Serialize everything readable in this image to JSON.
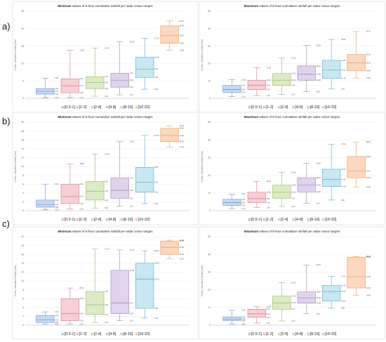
{
  "row_labels": [
    "a)",
    "b)",
    "c)"
  ],
  "titles": {
    "min": {
      "bold": "Minimum",
      "rest": " values of 6-hour cumulative rainfall per radar colour ranges"
    },
    "max": {
      "bold": "Maximum",
      "rest": " values of 6-hour cumulative rainfall per radar colour ranges"
    }
  },
  "ylabel": "6-hour cumulative rainfall (mm)",
  "legend": [
    "[0.5-1]",
    "[1-2]",
    "[2-4]",
    "[4-8]",
    "[8-16]",
    "[16-32]"
  ],
  "colors": {
    "fill": [
      "#c6d9f1",
      "#f6d0d6",
      "#dcebc6",
      "#e0d4ec",
      "#c9e7f1",
      "#fbd8bf"
    ],
    "stroke": [
      "#6c8fc8",
      "#d4788a",
      "#8fb56a",
      "#9c82b8",
      "#5ba7c6",
      "#e59a5a"
    ]
  },
  "chart_data": [
    {
      "type": "box",
      "title": "Minimum values of 6-hour cumulative rainfall per radar colour ranges",
      "row": "a)",
      "categories": [
        "[0.5-1]",
        "[1-2]",
        "[2-4]",
        "[4-8]",
        "[8-16]",
        "[16-32]"
      ],
      "ylim": [
        0,
        25
      ],
      "yticks": [
        0,
        5,
        10,
        15,
        20,
        25
      ],
      "boxes": [
        {
          "min": 0.2,
          "q1": 1.2,
          "median": 2.0,
          "q3": 2.8,
          "max": 5.8
        },
        {
          "min": 0.2,
          "q1": 1.6,
          "median": 3.6,
          "q3": 5.6,
          "max": 13.8
        },
        {
          "min": 0.6,
          "q1": 2.8,
          "median": 4.5,
          "q3": 6.2,
          "max": 14.4
        },
        {
          "min": 1.0,
          "q1": 3.2,
          "median": 5.2,
          "q3": 7.2,
          "max": 16.2
        },
        {
          "min": 2.6,
          "q1": 6.0,
          "median": 8.4,
          "q3": 11.8,
          "max": 17.2
        },
        {
          "min": 13.8,
          "q1": 15.8,
          "median": 18.0,
          "q3": 20.8,
          "max": 22.2
        }
      ]
    },
    {
      "type": "box",
      "title": "Maximum values of 6-hour cumulative rainfall per radar colour ranges",
      "row": "a)",
      "categories": [
        "[0.5-1]",
        "[1-2]",
        "[2-4]",
        "[4-8]",
        "[8-16]",
        "[16-32]"
      ],
      "ylim": [
        0,
        50
      ],
      "yticks": [
        0,
        10,
        20,
        30,
        40,
        50
      ],
      "boxes": [
        {
          "min": 1.0,
          "q1": 3.4,
          "median": 5.0,
          "q3": 7.4,
          "max": 10.6
        },
        {
          "min": 1.6,
          "q1": 5.0,
          "median": 7.4,
          "q3": 10.4,
          "max": 17.6
        },
        {
          "min": 2.2,
          "q1": 7.4,
          "median": 10.4,
          "q3": 14.2,
          "max": 23.2
        },
        {
          "min": 3.8,
          "q1": 10.4,
          "median": 13.8,
          "q3": 18.6,
          "max": 30.4
        },
        {
          "min": 5.4,
          "q1": 11.4,
          "median": 16.2,
          "q3": 21.8,
          "max": 33.8
        },
        {
          "min": 11.6,
          "q1": 15.8,
          "median": 20.4,
          "q3": 25.2,
          "max": 38.4
        }
      ]
    },
    {
      "type": "box",
      "title": "Minimum values of 6-hour cumulative rainfall per radar colour ranges",
      "row": "b)",
      "categories": [
        "[0.5-1]",
        "[1-2]",
        "[2-4]",
        "[4-8]",
        "[8-16]",
        "[16-32]"
      ],
      "ylim": [
        0,
        20
      ],
      "yticks": [
        0,
        2,
        4,
        6,
        8,
        10,
        12,
        14,
        16,
        18,
        20
      ],
      "boxes": [
        {
          "min": 0.2,
          "q1": 0.8,
          "median": 1.4,
          "q3": 2.4,
          "max": 6.0
        },
        {
          "min": 0.4,
          "q1": 1.6,
          "median": 3.2,
          "q3": 6.0,
          "max": 10.6
        },
        {
          "min": 0.6,
          "q1": 2.4,
          "median": 4.4,
          "q3": 6.6,
          "max": 12.8
        },
        {
          "min": 1.0,
          "q1": 2.8,
          "median": 4.6,
          "q3": 7.4,
          "max": 15.6
        },
        {
          "min": 1.6,
          "q1": 4.2,
          "median": 6.4,
          "q3": 9.8,
          "max": 17.0
        },
        {
          "min": 14.4,
          "q1": 15.6,
          "median": 17.0,
          "q3": 18.6,
          "max": 19.2
        }
      ]
    },
    {
      "type": "box",
      "title": "Maximum values of 6-hour cumulative rainfall per radar colour ranges",
      "row": "b)",
      "categories": [
        "[0.5-1]",
        "[1-2]",
        "[2-4]",
        "[4-8]",
        "[8-16]",
        "[16-32]"
      ],
      "ylim": [
        0,
        50
      ],
      "yticks": [
        0,
        10,
        20,
        30,
        40,
        50
      ],
      "boxes": [
        {
          "min": 1.2,
          "q1": 3.0,
          "median": 4.6,
          "q3": 6.4,
          "max": 9.4
        },
        {
          "min": 1.8,
          "q1": 4.6,
          "median": 6.8,
          "q3": 10.4,
          "max": 16.6
        },
        {
          "min": 2.4,
          "q1": 7.0,
          "median": 10.4,
          "q3": 14.4,
          "max": 21.6
        },
        {
          "min": 4.2,
          "q1": 10.6,
          "median": 14.4,
          "q3": 18.6,
          "max": 26.8
        },
        {
          "min": 6.0,
          "q1": 13.6,
          "median": 17.6,
          "q3": 23.4,
          "max": 37.6
        },
        {
          "min": 13.4,
          "q1": 18.6,
          "median": 22.4,
          "q3": 30.6,
          "max": 38.8
        }
      ]
    },
    {
      "type": "box",
      "title": "Minimum values of 6-hour cumulative rainfall per radar colour ranges",
      "row": "c)",
      "categories": [
        "[0.5-1]",
        "[1-2]",
        "[2-4]",
        "[4-8]",
        "[8-16]",
        "[16-32]"
      ],
      "ylim": [
        0,
        20
      ],
      "yticks": [
        0,
        2,
        4,
        6,
        8,
        10,
        12,
        14,
        16,
        18,
        20
      ],
      "boxes": [
        {
          "min": 0.2,
          "q1": 0.6,
          "median": 1.2,
          "q3": 2.2,
          "max": 3.0
        },
        {
          "min": 0.2,
          "q1": 1.0,
          "median": 2.6,
          "q3": 6.0,
          "max": 8.4
        },
        {
          "min": 0.6,
          "q1": 2.4,
          "median": 4.6,
          "q3": 7.6,
          "max": 17.2
        },
        {
          "min": 1.0,
          "q1": 2.6,
          "median": 5.0,
          "q3": 12.4,
          "max": 17.0
        },
        {
          "min": 1.6,
          "q1": 3.8,
          "median": 10.4,
          "q3": 14.0,
          "max": 16.8
        },
        {
          "min": 15.0,
          "q1": 16.0,
          "median": 17.6,
          "q3": 19.0,
          "max": 19.2
        }
      ]
    },
    {
      "type": "box",
      "title": "Maximum values of 6-hour cumulative rainfall per radar colour ranges",
      "row": "c)",
      "categories": [
        "[0.5-1]",
        "[1-2]",
        "[2-4]",
        "[4-8]",
        "[8-16]",
        "[16-32]"
      ],
      "ylim": [
        0,
        50
      ],
      "yticks": [
        0,
        10,
        20,
        30,
        40,
        50
      ],
      "boxes": [
        {
          "min": 0.6,
          "q1": 2.6,
          "median": 3.4,
          "q3": 4.6,
          "max": 8.4
        },
        {
          "min": 1.2,
          "q1": 4.4,
          "median": 6.4,
          "q3": 9.0,
          "max": 10.4
        },
        {
          "min": 2.4,
          "q1": 9.0,
          "median": 12.6,
          "q3": 16.4,
          "max": 24.0
        },
        {
          "min": 6.4,
          "q1": 12.4,
          "median": 15.4,
          "q3": 18.8,
          "max": 34.0
        },
        {
          "min": 9.6,
          "q1": 13.6,
          "median": 19.0,
          "q3": 22.4,
          "max": 27.6
        },
        {
          "min": 16.8,
          "q1": 21.0,
          "median": 27.4,
          "q3": 38.4,
          "max": 38.8
        }
      ]
    }
  ]
}
